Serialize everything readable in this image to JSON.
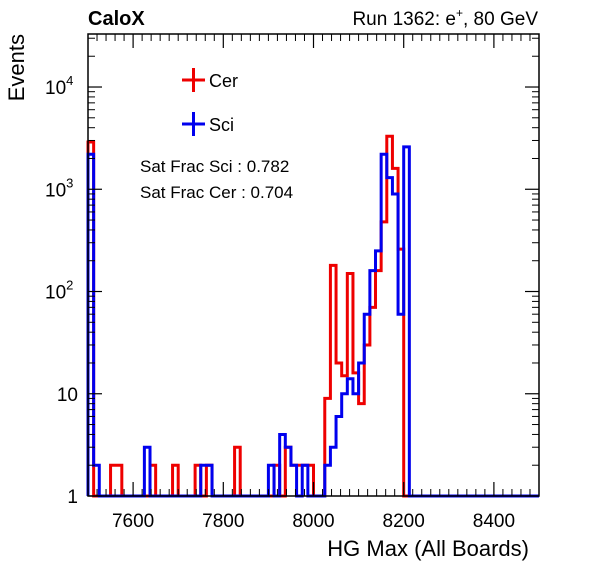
{
  "header": {
    "left": "CaloX",
    "right_prefix": "Run 1362: e",
    "right_sup": "+",
    "right_suffix": ", 80 GeV"
  },
  "stats": {
    "sci": "Sat Frac Sci : 0.782",
    "cer": "Sat Frac Cer : 0.704"
  },
  "chart_data": {
    "type": "line",
    "title": "",
    "xlabel": "HG Max (All Boards)",
    "ylabel": "Events",
    "xlim": [
      7500,
      8500
    ],
    "ylim": [
      1,
      33000
    ],
    "yscale": "log",
    "histogram": true,
    "grid": false,
    "legend_position": "top-left",
    "x_ticks": [
      "7600",
      "7800",
      "8000",
      "8200",
      "8400"
    ],
    "y_ticks": [
      {
        "value": 1,
        "base": "1",
        "exp": ""
      },
      {
        "value": 10,
        "base": "10",
        "exp": ""
      },
      {
        "value": 100,
        "base": "10",
        "exp": "2"
      },
      {
        "value": 1000,
        "base": "10",
        "exp": "3"
      },
      {
        "value": 10000,
        "base": "10",
        "exp": "4"
      }
    ],
    "bin_width": 12.5,
    "series": [
      {
        "name": "Cer",
        "color": "#ee0000",
        "bins": [
          [
            7500,
            2900
          ],
          [
            7550,
            2
          ],
          [
            7562.5,
            2
          ],
          [
            7637.5,
            2
          ],
          [
            7687.5,
            2
          ],
          [
            7737.5,
            2
          ],
          [
            7762.5,
            2
          ],
          [
            7825,
            3
          ],
          [
            7912.5,
            2
          ],
          [
            7937.5,
            3
          ],
          [
            7950,
            2
          ],
          [
            7962.5,
            2
          ],
          [
            7975,
            2
          ],
          [
            7987.5,
            2
          ],
          [
            8025,
            9
          ],
          [
            8037.5,
            180
          ],
          [
            8050,
            20
          ],
          [
            8062.5,
            15
          ],
          [
            8075,
            150
          ],
          [
            8087.5,
            16
          ],
          [
            8100,
            8
          ],
          [
            8112.5,
            30
          ],
          [
            8125,
            70
          ],
          [
            8137.5,
            160
          ],
          [
            8150,
            480
          ],
          [
            8162.5,
            3300
          ],
          [
            8175,
            1600
          ],
          [
            8187.5,
            260
          ]
        ]
      },
      {
        "name": "Sci",
        "color": "#0000ee",
        "bins": [
          [
            7500,
            2200
          ],
          [
            7512.5,
            2
          ],
          [
            7625,
            3
          ],
          [
            7750,
            2
          ],
          [
            7762.5,
            2
          ],
          [
            7900,
            2
          ],
          [
            7925,
            4
          ],
          [
            7937.5,
            3
          ],
          [
            7950,
            2
          ],
          [
            7975,
            2
          ],
          [
            8025,
            2
          ],
          [
            8037.5,
            3
          ],
          [
            8050,
            6
          ],
          [
            8062.5,
            10
          ],
          [
            8075,
            14
          ],
          [
            8087.5,
            10
          ],
          [
            8100,
            20
          ],
          [
            8112.5,
            60
          ],
          [
            8125,
            160
          ],
          [
            8137.5,
            250
          ],
          [
            8150,
            2200
          ],
          [
            8162.5,
            1300
          ],
          [
            8175,
            900
          ],
          [
            8187.5,
            60
          ],
          [
            8200,
            2600
          ]
        ]
      }
    ]
  }
}
